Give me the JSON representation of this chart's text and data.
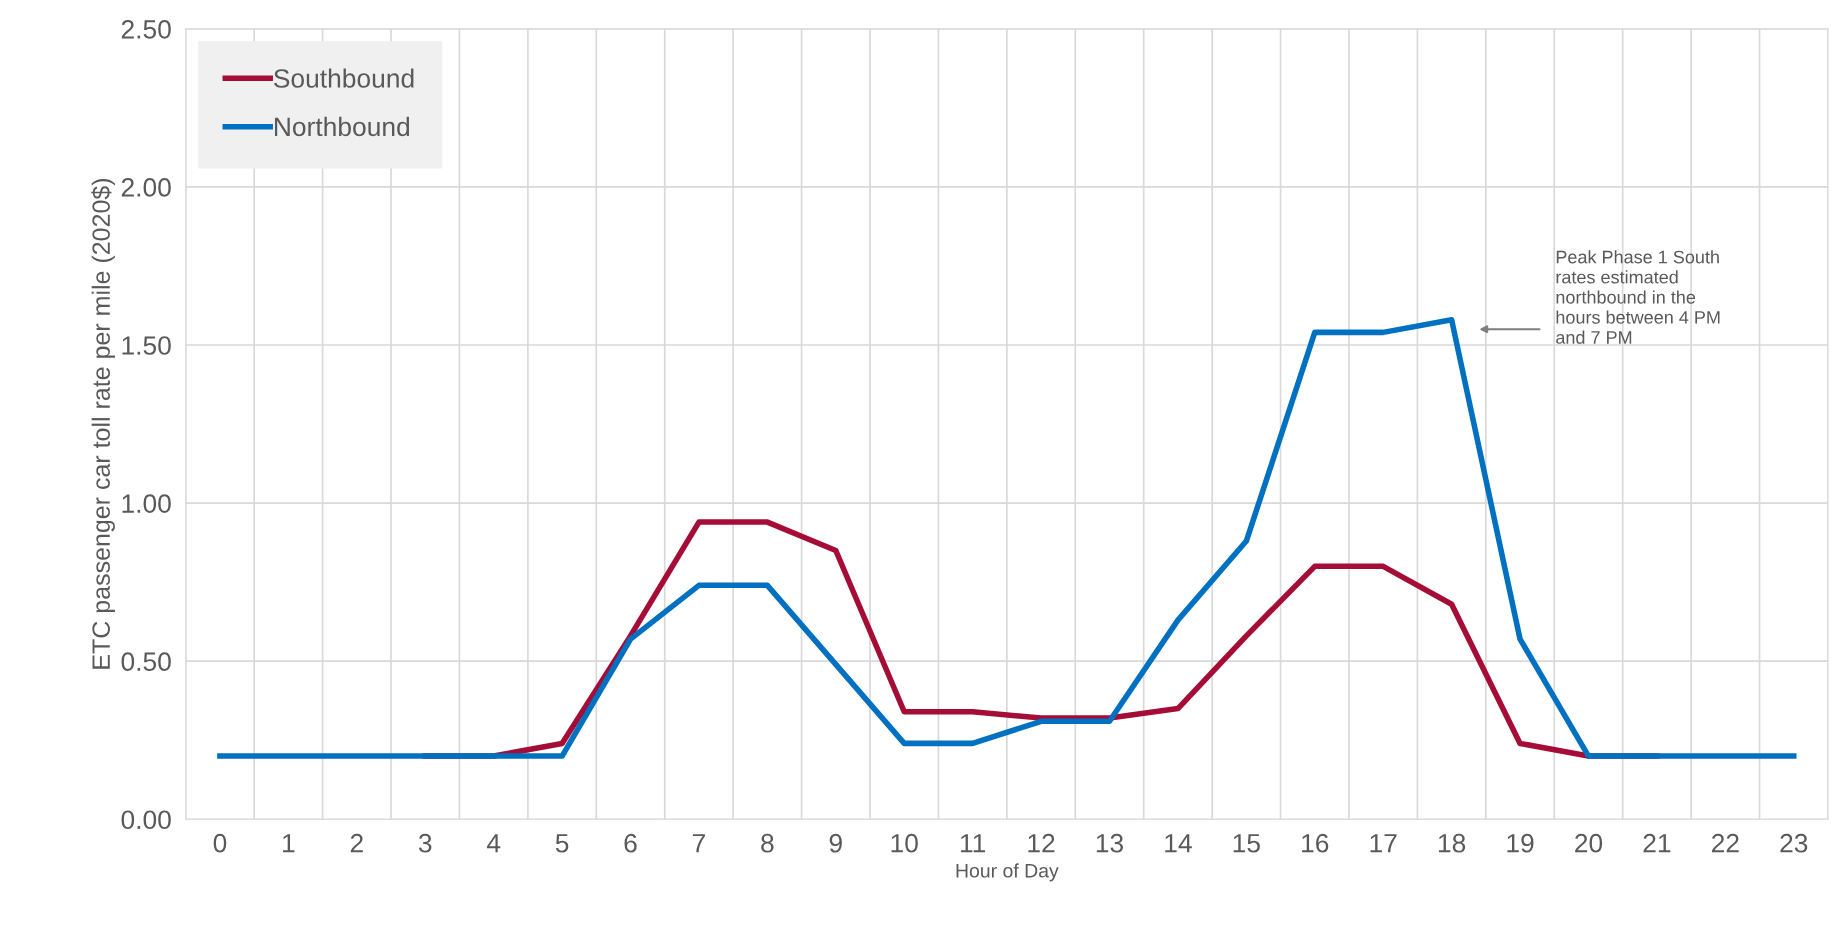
{
  "chart_data": {
    "type": "line",
    "xlabel": "Hour of Day",
    "ylabel": "ETC passenger car toll rate per mile (2020$)",
    "categories": [
      "0",
      "1",
      "2",
      "3",
      "4",
      "5",
      "6",
      "7",
      "8",
      "9",
      "10",
      "11",
      "12",
      "13",
      "14",
      "15",
      "16",
      "17",
      "18",
      "19",
      "20",
      "21",
      "22",
      "23"
    ],
    "series": [
      {
        "name": "Southbound",
        "color": "#a50d36",
        "values": [
          null,
          null,
          null,
          0.2,
          0.2,
          0.24,
          0.58,
          0.94,
          0.94,
          0.85,
          0.34,
          0.34,
          0.32,
          0.32,
          0.35,
          0.58,
          0.8,
          0.8,
          0.68,
          0.24,
          0.2,
          0.2,
          null,
          null
        ]
      },
      {
        "name": "Northbound",
        "color": "#0070c0",
        "values": [
          0.2,
          0.2,
          0.2,
          0.2,
          0.2,
          0.2,
          0.57,
          0.74,
          0.74,
          0.49,
          0.24,
          0.24,
          0.31,
          0.31,
          0.63,
          0.88,
          1.54,
          1.54,
          1.58,
          0.57,
          0.2,
          0.2,
          0.2,
          0.2
        ]
      }
    ],
    "ylim": [
      0,
      2.5
    ],
    "yticks": [
      {
        "value": 0,
        "label": "0.00"
      },
      {
        "value": 0.5,
        "label": "0.50"
      },
      {
        "value": 1,
        "label": "1.00"
      },
      {
        "value": 1.5,
        "label": "1.50"
      },
      {
        "value": 2,
        "label": "2.00"
      },
      {
        "value": 2.5,
        "label": "2.50"
      }
    ],
    "grid": true,
    "legend": "top left",
    "marker": "none",
    "line_style": "solid",
    "annotations": [
      "Peak Phase 1 South\nrates estimated\nnorthbound in the\nhours between 4 PM\nand 7 PM"
    ]
  }
}
